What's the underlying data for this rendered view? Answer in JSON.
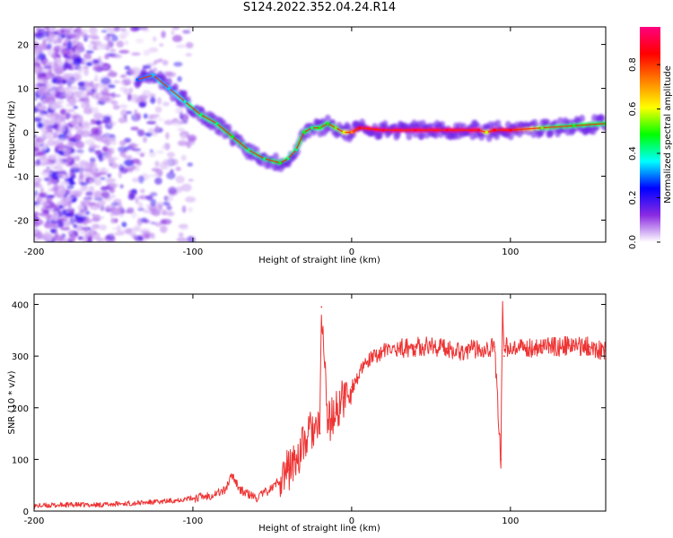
{
  "title": "S124.2022.352.04.24.R14",
  "chart_data": [
    {
      "type": "heatmap",
      "title": "",
      "xlabel": "Height of straight line (km)",
      "ylabel": "Frequency (Hz)",
      "xlim": [
        -200,
        160
      ],
      "ylim": [
        -25,
        24
      ],
      "x_ticks": [
        -200,
        -100,
        0,
        100
      ],
      "y_ticks": [
        -20,
        -10,
        0,
        10,
        20
      ],
      "colorbar": {
        "label": "Normalized spectral amplitude",
        "range": [
          0,
          0.97
        ],
        "ticks": [
          0.0,
          0.2,
          0.4,
          0.6,
          0.8
        ],
        "colors": [
          "#ffffff",
          "#8a2be2",
          "#0000ff",
          "#00ffff",
          "#00ff00",
          "#ffff00",
          "#ff8000",
          "#ff0000",
          "#ff0080"
        ]
      },
      "ridge": {
        "description": "dominant frequency track",
        "x": [
          -135,
          -125,
          -115,
          -105,
          -95,
          -85,
          -75,
          -65,
          -55,
          -45,
          -40,
          -35,
          -30,
          -25,
          -20,
          -15,
          -10,
          -5,
          0,
          5,
          20,
          40,
          60,
          80,
          85,
          90,
          100,
          120,
          140,
          160
        ],
        "y": [
          12,
          13,
          10,
          7,
          4,
          2,
          -1,
          -4,
          -6,
          -7,
          -6,
          -4,
          0,
          1,
          1,
          2,
          1,
          0,
          0,
          1,
          0.5,
          0.5,
          0.5,
          0.5,
          0,
          0.5,
          0.5,
          1,
          1.5,
          2
        ],
        "amplitude": [
          0.3,
          0.35,
          0.35,
          0.4,
          0.45,
          0.45,
          0.5,
          0.45,
          0.45,
          0.5,
          0.45,
          0.45,
          0.5,
          0.45,
          0.5,
          0.5,
          0.55,
          0.6,
          0.75,
          0.9,
          0.95,
          0.95,
          0.95,
          0.95,
          0.6,
          0.9,
          0.9,
          0.55,
          0.5,
          0.5
        ]
      }
    },
    {
      "type": "line",
      "title": "",
      "xlabel": "Height of straight line (km)",
      "ylabel": "SNR (10 * v/v)",
      "xlim": [
        -200,
        160
      ],
      "ylim": [
        0,
        420
      ],
      "x_ticks": [
        -200,
        -100,
        0,
        100
      ],
      "y_ticks": [
        0,
        100,
        200,
        300,
        400
      ],
      "color": "#ee3333",
      "series": [
        {
          "x": [
            -200,
            -180,
            -160,
            -140,
            -120,
            -100,
            -90,
            -80,
            -75,
            -70,
            -60,
            -50,
            -40,
            -35,
            -30,
            -25,
            -20,
            -19,
            -15,
            -10,
            -5,
            0,
            10,
            20,
            30,
            40,
            50,
            60,
            70,
            80,
            90,
            93,
            94,
            95,
            96,
            97,
            100,
            110,
            120,
            130,
            140,
            150,
            160
          ],
          "y": [
            10,
            12,
            12,
            15,
            18,
            25,
            30,
            40,
            70,
            40,
            25,
            45,
            80,
            100,
            130,
            160,
            150,
            395,
            170,
            190,
            220,
            240,
            290,
            310,
            315,
            318,
            320,
            315,
            310,
            315,
            318,
            150,
            100,
            420,
            300,
            320,
            310,
            315,
            320,
            318,
            320,
            318,
            310
          ]
        }
      ]
    }
  ]
}
